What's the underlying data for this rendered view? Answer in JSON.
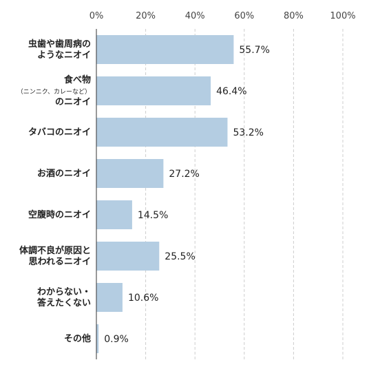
{
  "chart_data": {
    "type": "bar",
    "orientation": "horizontal",
    "title": "",
    "xlabel": "",
    "ylabel": "",
    "xlim": [
      0,
      100
    ],
    "x_ticks": [
      "0%",
      "20%",
      "40%",
      "60%",
      "80%",
      "100%"
    ],
    "gridlines": "dashed vertical",
    "bar_color": "#b4cde2",
    "categories": [
      "虫歯や歯周病のようなニオイ",
      "食べ物（ニンニク、カレーなど）のニオイ",
      "タバコのニオイ",
      "お酒のニオイ",
      "空腹時のニオイ",
      "体調不良が原因と思われるニオイ",
      "わからない・答えたくない",
      "その他"
    ],
    "category_lines": [
      [
        "虫歯や歯周病の",
        "ようなニオイ"
      ],
      [
        "食べ物",
        "（ニンニク、カレーなど）",
        "のニオイ"
      ],
      [
        "タバコのニオイ"
      ],
      [
        "お酒のニオイ"
      ],
      [
        "空腹時のニオイ"
      ],
      [
        "体調不良が原因と",
        "思われるニオイ"
      ],
      [
        "わからない・",
        "答えたくない"
      ],
      [
        "その他"
      ]
    ],
    "values": [
      55.7,
      46.4,
      53.2,
      27.2,
      14.5,
      25.5,
      10.6,
      0.9
    ],
    "value_labels": [
      "55.7%",
      "46.4%",
      "53.2%",
      "27.2%",
      "14.5%",
      "25.5%",
      "10.6%",
      "0.9%"
    ]
  }
}
